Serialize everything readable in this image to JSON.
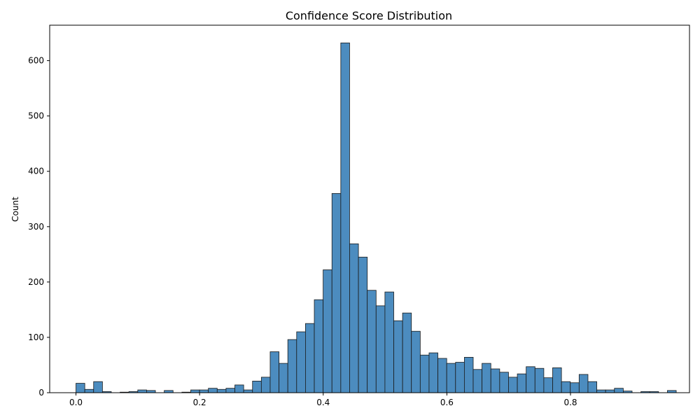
{
  "chart_data": {
    "type": "bar",
    "title": "Confidence Score Distribution",
    "xlabel": "",
    "ylabel": "Count",
    "xlim": [
      -0.0425,
      0.9925
    ],
    "ylim": [
      0,
      664
    ],
    "x_ticks": [
      0.0,
      0.2,
      0.4,
      0.6,
      0.8
    ],
    "x_tick_labels": [
      "0.0",
      "0.2",
      "0.4",
      "0.6",
      "0.8"
    ],
    "y_ticks": [
      0,
      100,
      200,
      300,
      400,
      500,
      600
    ],
    "y_tick_labels": [
      "0",
      "100",
      "200",
      "300",
      "400",
      "500",
      "600"
    ],
    "grid": false,
    "bar_color": "#4c8cbf",
    "edge_color": "#1a1a1a",
    "bin_start": 0.0,
    "bin_width": 0.01428,
    "values": [
      17,
      6,
      20,
      2,
      0,
      1,
      2,
      5,
      4,
      0,
      4,
      0,
      1,
      5,
      5,
      8,
      6,
      8,
      14,
      5,
      21,
      28,
      74,
      53,
      96,
      110,
      125,
      168,
      222,
      360,
      632,
      269,
      245,
      185,
      157,
      182,
      130,
      144,
      111,
      68,
      72,
      62,
      53,
      55,
      64,
      42,
      53,
      43,
      37,
      28,
      34,
      47,
      44,
      27,
      45,
      20,
      18,
      33,
      20,
      5,
      5,
      8,
      3,
      0,
      2,
      2,
      0,
      4
    ]
  }
}
